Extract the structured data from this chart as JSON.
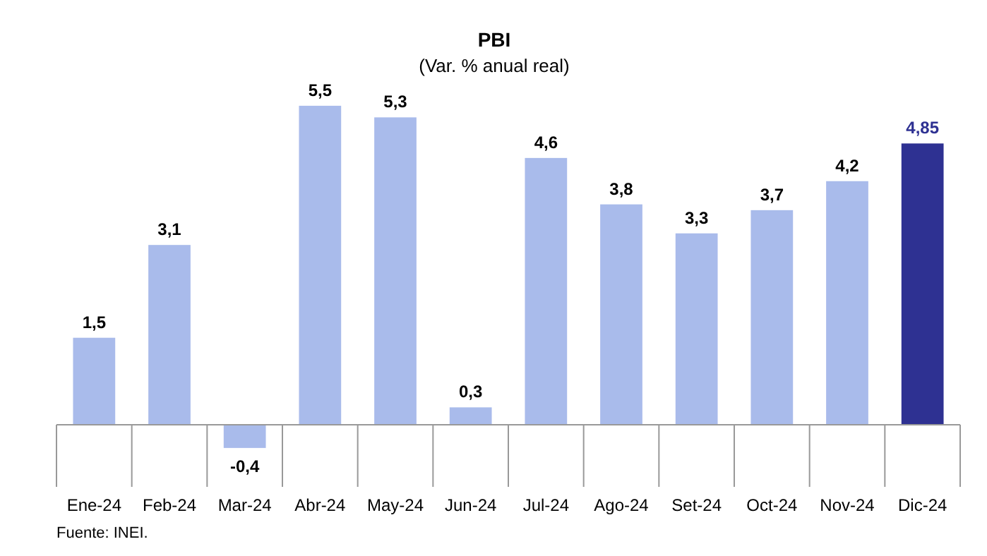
{
  "chart_data": {
    "type": "bar",
    "title": "PBI",
    "subtitle": "(Var. % anual real)",
    "categories": [
      "Ene-24",
      "Feb-24",
      "Mar-24",
      "Abr-24",
      "May-24",
      "Jun-24",
      "Jul-24",
      "Ago-24",
      "Set-24",
      "Oct-24",
      "Nov-24",
      "Dic-24"
    ],
    "values": [
      1.5,
      3.1,
      -0.4,
      5.5,
      5.3,
      0.3,
      4.6,
      3.8,
      3.3,
      3.7,
      4.2,
      4.85
    ],
    "colors": [
      "#a9bbeb",
      "#a9bbeb",
      "#a9bbeb",
      "#a9bbeb",
      "#a9bbeb",
      "#a9bbeb",
      "#a9bbeb",
      "#a9bbeb",
      "#a9bbeb",
      "#a9bbeb",
      "#a9bbeb",
      "#2e3192"
    ],
    "value_labels": [
      "1,5",
      "3,1",
      "-0,4",
      "5,5",
      "5,3",
      "0,3",
      "4,6",
      "3,8",
      "3,3",
      "3,7",
      "4,2",
      "4,85"
    ],
    "annotations": [
      "Fuente: INEI."
    ]
  }
}
